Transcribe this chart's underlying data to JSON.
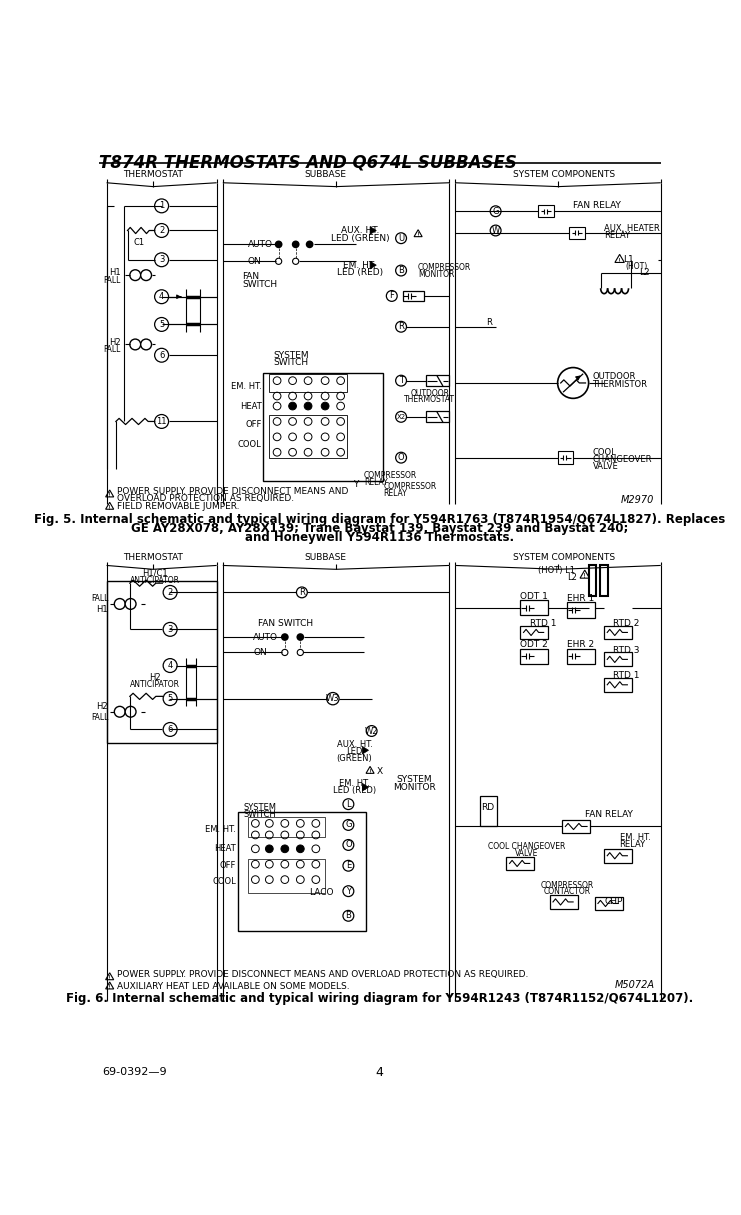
{
  "title": "T874R THERMOSTATS AND Q674L SUBBASES",
  "page_number": "4",
  "doc_number": "69-0392—9",
  "fig5_caption_l1": "Fig. 5. Internal schematic and typical wiring diagram for Y594R1763 (T874R1954/Q674L1827). Replaces",
  "fig5_caption_l2": "GE AY28X078, AY28X139; Trane Baystat 139, Baystat 239 and Baystat 240;",
  "fig5_caption_l3": "and Honeywell Y594R1136 Thermostats.",
  "fig6_caption": "Fig. 6. Internal schematic and typical wiring diagram for Y594R1243 (T874R1152/Q674L1207).",
  "bg_color": "#ffffff"
}
